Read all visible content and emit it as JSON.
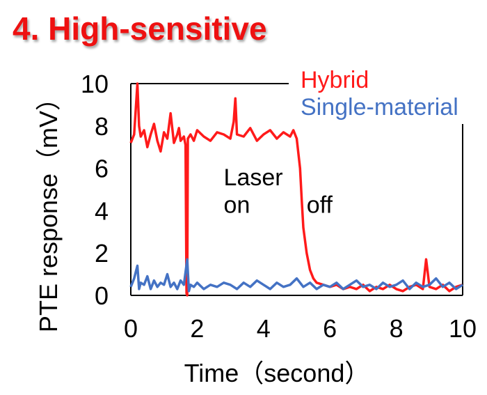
{
  "slide": {
    "title": "4. High-sensitive"
  },
  "colors": {
    "title": "#ee1111",
    "hybrid": "#ff1a1a",
    "single": "#4472c4",
    "axis": "#000000"
  },
  "chart_data": {
    "type": "line",
    "title": "",
    "xlabel": "Time（second）",
    "ylabel": "PTE response（mV）",
    "xlim": [
      0,
      10
    ],
    "ylim": [
      0,
      10
    ],
    "x_ticks": [
      0,
      2,
      4,
      6,
      8,
      10
    ],
    "y_ticks": [
      0,
      2,
      4,
      6,
      8,
      10
    ],
    "grid": false,
    "legend_position": "top-right",
    "annotations": [
      {
        "text": "Laser",
        "x": 2.8,
        "y": 5.2
      },
      {
        "text": "on",
        "x": 2.8,
        "y": 3.9
      },
      {
        "text": "off",
        "x": 5.3,
        "y": 3.9
      }
    ],
    "series": [
      {
        "name": "Hybrid",
        "color": "#ff1a1a",
        "x": [
          0,
          0.1,
          0.2,
          0.25,
          0.3,
          0.4,
          0.5,
          0.6,
          0.7,
          0.8,
          0.9,
          1.0,
          1.1,
          1.2,
          1.3,
          1.4,
          1.45,
          1.5,
          1.6,
          1.65,
          1.68,
          1.7,
          1.72,
          1.8,
          1.9,
          2.0,
          2.2,
          2.4,
          2.6,
          2.8,
          3.0,
          3.1,
          3.15,
          3.2,
          3.4,
          3.6,
          3.8,
          4.0,
          4.2,
          4.4,
          4.6,
          4.8,
          4.9,
          5.0,
          5.1,
          5.15,
          5.2,
          5.3,
          5.4,
          5.5,
          5.6,
          5.8,
          6.0,
          6.2,
          6.4,
          6.6,
          6.8,
          7.0,
          7.2,
          7.4,
          7.6,
          7.8,
          8.0,
          8.2,
          8.4,
          8.6,
          8.8,
          8.9,
          9.0,
          9.2,
          9.4,
          9.6,
          9.8,
          10.0
        ],
        "y": [
          7.2,
          7.6,
          10.0,
          8.0,
          7.5,
          7.8,
          7.0,
          7.6,
          8.1,
          7.3,
          6.8,
          7.7,
          7.4,
          8.6,
          7.2,
          7.6,
          7.9,
          7.3,
          7.5,
          7.1,
          0.1,
          0.0,
          7.4,
          7.6,
          7.3,
          7.8,
          7.5,
          7.3,
          7.7,
          7.6,
          7.4,
          8.2,
          9.3,
          7.6,
          7.5,
          7.9,
          7.3,
          7.6,
          7.8,
          7.4,
          7.7,
          7.5,
          7.8,
          7.4,
          6.0,
          4.5,
          3.2,
          2.0,
          1.2,
          0.8,
          0.6,
          0.5,
          0.4,
          0.5,
          0.3,
          0.4,
          0.3,
          0.5,
          0.2,
          0.4,
          0.3,
          0.5,
          0.3,
          0.2,
          0.4,
          0.5,
          0.3,
          1.7,
          0.4,
          0.3,
          0.5,
          0.2,
          0.4,
          0.5
        ]
      },
      {
        "name": "Single-material",
        "color": "#4472c4",
        "x": [
          0,
          0.1,
          0.2,
          0.25,
          0.3,
          0.4,
          0.5,
          0.6,
          0.7,
          0.8,
          0.9,
          1.0,
          1.1,
          1.2,
          1.3,
          1.4,
          1.5,
          1.6,
          1.7,
          1.75,
          1.8,
          1.9,
          2.0,
          2.2,
          2.4,
          2.6,
          2.8,
          3.0,
          3.2,
          3.4,
          3.6,
          3.8,
          4.0,
          4.2,
          4.4,
          4.6,
          4.8,
          5.0,
          5.2,
          5.4,
          5.6,
          5.8,
          6.0,
          6.2,
          6.4,
          6.6,
          6.8,
          7.0,
          7.2,
          7.4,
          7.6,
          7.8,
          8.0,
          8.2,
          8.4,
          8.6,
          8.8,
          9.0,
          9.2,
          9.4,
          9.6,
          9.8,
          10.0
        ],
        "y": [
          0.4,
          0.8,
          1.4,
          0.3,
          0.6,
          0.5,
          0.9,
          0.3,
          0.7,
          0.4,
          0.6,
          0.5,
          1.0,
          0.4,
          0.6,
          0.3,
          0.7,
          0.5,
          1.7,
          0.2,
          0.5,
          0.4,
          0.6,
          0.3,
          0.5,
          0.4,
          0.6,
          0.5,
          0.3,
          0.6,
          0.4,
          0.7,
          0.5,
          0.3,
          0.6,
          0.4,
          0.5,
          0.8,
          0.4,
          0.6,
          0.3,
          0.5,
          0.4,
          0.6,
          0.3,
          0.5,
          0.7,
          0.4,
          0.5,
          0.3,
          0.6,
          0.4,
          0.5,
          0.7,
          0.3,
          0.6,
          0.4,
          0.5,
          0.8,
          0.4,
          0.6,
          0.3,
          0.5
        ]
      }
    ]
  }
}
